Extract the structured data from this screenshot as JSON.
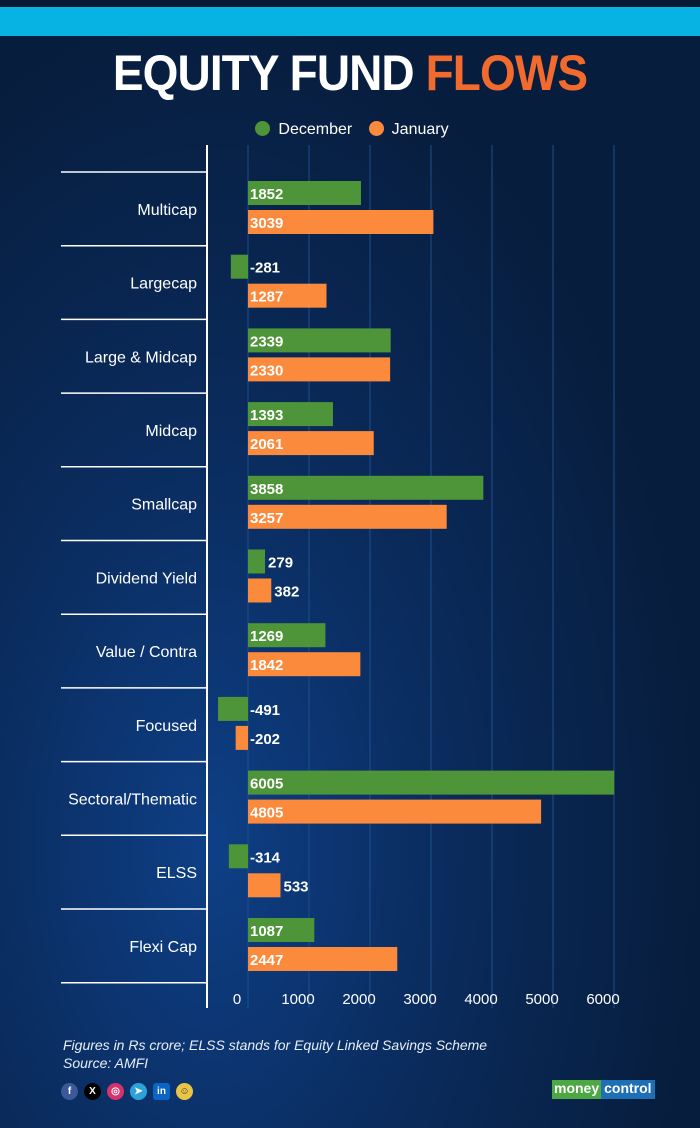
{
  "title": {
    "part1": "EQUITY FUND",
    "part2": "FLOWS"
  },
  "chart_data": {
    "type": "bar",
    "orientation": "horizontal",
    "categories": [
      "Multicap",
      "Largecap",
      "Large & Midcap",
      "Midcap",
      "Smallcap",
      "Dividend Yield",
      "Value / Contra",
      "Focused",
      "Sectoral/Thematic",
      "ELSS",
      "Flexi Cap"
    ],
    "series": [
      {
        "name": "December",
        "color": "#4e9438",
        "values": [
          1852,
          -281,
          2339,
          1393,
          3858,
          279,
          1269,
          -491,
          6005,
          -314,
          1087
        ]
      },
      {
        "name": "January",
        "color": "#fb8a3c",
        "values": [
          3039,
          1287,
          2330,
          2061,
          3257,
          382,
          1842,
          -202,
          4805,
          533,
          2447
        ]
      }
    ],
    "xticks": [
      "0",
      "1000",
      "2000",
      "3000",
      "4000",
      "5000",
      "6000"
    ],
    "xlim": [
      -700,
      6500
    ],
    "legend": "top-center",
    "grid": true
  },
  "footer": {
    "note": "Figures in Rs crore; ELSS stands for Equity Linked Savings Scheme",
    "source": "Source: AMFI"
  },
  "social": [
    "f",
    "X",
    "ig",
    "tg",
    "in",
    "sc"
  ],
  "logo": {
    "part1": "money",
    "part2": "control"
  }
}
